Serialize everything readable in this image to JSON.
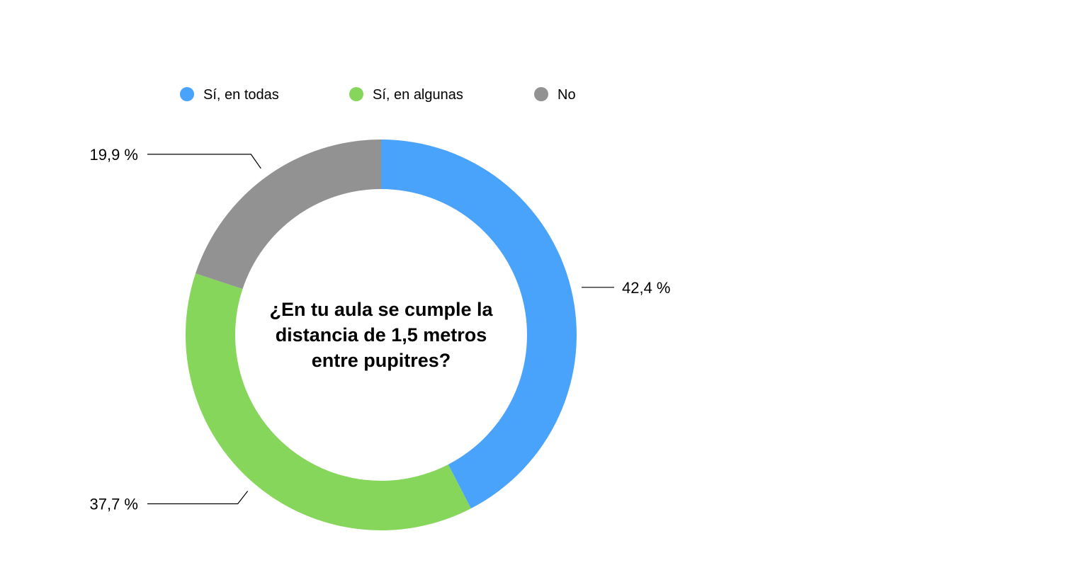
{
  "chart_data": {
    "type": "pie",
    "variant": "donut",
    "title": "¿En tu aula se cumple la distancia de 1,5 metros entre pupitres?",
    "title_lines": [
      "¿En tu aula se cumple la",
      "distancia de 1,5 metros",
      "entre pupitres?"
    ],
    "legend_position": "top",
    "categories": [
      "Sí, en todas",
      "Sí, en algunas",
      "No"
    ],
    "values": [
      42.4,
      37.7,
      19.9
    ],
    "value_labels": [
      "42,4 %",
      "37,7 %",
      "19,9 %"
    ],
    "colors": [
      "#4aa3fa",
      "#85d65a",
      "#929292"
    ],
    "grid": false
  }
}
